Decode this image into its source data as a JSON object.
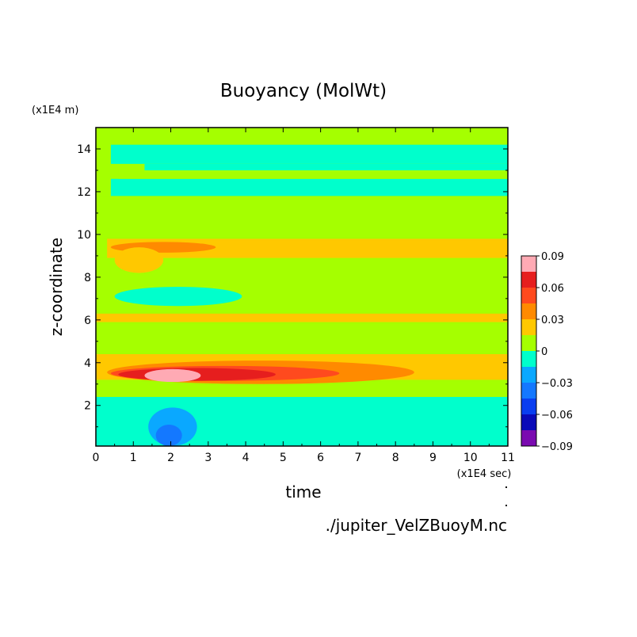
{
  "chart_data": {
    "type": "heatmap",
    "title": "Buoyancy (MolWt)",
    "xlabel": "time",
    "ylabel": "z-coordinate",
    "x_units": "(x1E4 sec)",
    "y_units": "(x1E4 m)",
    "xlim": [
      0,
      11
    ],
    "ylim": [
      0.1,
      15
    ],
    "x_ticks": [
      0,
      1,
      2,
      3,
      4,
      5,
      6,
      7,
      8,
      9,
      10,
      11
    ],
    "y_ticks": [
      2,
      4,
      6,
      8,
      10,
      12,
      14
    ],
    "colorbar": {
      "levels": [
        -0.09,
        -0.075,
        -0.06,
        -0.045,
        -0.03,
        -0.015,
        0,
        0.015,
        0.03,
        0.045,
        0.06,
        0.075,
        0.09
      ],
      "tick_values": [
        0.09,
        0.06,
        0.03,
        0,
        -0.03,
        -0.06,
        -0.09
      ],
      "tick_labels": [
        "0.09",
        "0.06",
        "0.03",
        "0",
        "−0.03",
        "−0.06",
        "−0.09"
      ],
      "colors": [
        "#7a0ab0",
        "#0a0ab8",
        "#0a3ef0",
        "#1478ff",
        "#0aa8ff",
        "#00ffcc",
        "#a5ff00",
        "#ffc800",
        "#ff8a00",
        "#ff4a1e",
        "#e61e1e",
        "#ffaab4"
      ]
    },
    "bands": [
      {
        "z_from": 0.1,
        "z_to": 2.4,
        "t_from": 0,
        "t_to": 11,
        "value": -0.008
      },
      {
        "z_from": 2.4,
        "z_to": 3.2,
        "t_from": 0,
        "t_to": 11,
        "value": 0.007
      },
      {
        "z_from": 3.2,
        "z_to": 4.4,
        "t_from": 0,
        "t_to": 11,
        "value": 0.022
      },
      {
        "z_from": 4.4,
        "z_to": 5.9,
        "t_from": 0,
        "t_to": 11,
        "value": 0.007
      },
      {
        "z_from": 5.9,
        "z_to": 6.3,
        "t_from": 0,
        "t_to": 11,
        "value": 0.022
      },
      {
        "z_from": 6.3,
        "z_to": 8.9,
        "t_from": 0,
        "t_to": 11,
        "value": 0.007
      },
      {
        "z_from": 8.9,
        "z_to": 9.8,
        "t_from": 0.3,
        "t_to": 11,
        "value": 0.022
      },
      {
        "z_from": 9.8,
        "z_to": 11.8,
        "t_from": 0,
        "t_to": 11,
        "value": 0.007
      },
      {
        "z_from": 11.8,
        "z_to": 12.6,
        "t_from": 0.4,
        "t_to": 11,
        "value": -0.008
      },
      {
        "z_from": 12.6,
        "z_to": 13.0,
        "t_from": 0.6,
        "t_to": 11,
        "value": 0.007
      },
      {
        "z_from": 13.0,
        "z_to": 13.3,
        "t_from": 1.3,
        "t_to": 11,
        "value": -0.008
      },
      {
        "z_from": 13.3,
        "z_to": 14.2,
        "t_from": 0.4,
        "t_to": 11,
        "value": -0.008
      },
      {
        "z_from": 14.2,
        "z_to": 15.0,
        "t_from": 0,
        "t_to": 11,
        "value": 0.007
      }
    ],
    "features": [
      {
        "t_from": 0.3,
        "t_to": 8.5,
        "z_center": 3.55,
        "z_half": 0.55,
        "value": 0.038
      },
      {
        "t_from": 0.4,
        "t_to": 6.5,
        "z_center": 3.5,
        "z_half": 0.35,
        "value": 0.052
      },
      {
        "t_from": 0.6,
        "t_to": 4.8,
        "z_center": 3.45,
        "z_half": 0.3,
        "value": 0.068
      },
      {
        "t_from": 1.3,
        "t_to": 2.8,
        "z_center": 3.4,
        "z_half": 0.3,
        "value": 0.082
      },
      {
        "t_from": 1.5,
        "t_to": 2.4,
        "z_center": 3.35,
        "z_half": 0.22,
        "value": 0.092
      },
      {
        "t_from": 0.4,
        "t_to": 3.2,
        "z_center": 9.4,
        "z_half": 0.25,
        "value": 0.038
      },
      {
        "t_from": 0.5,
        "t_to": 1.8,
        "z_center": 8.8,
        "z_half": 0.6,
        "value": 0.022
      },
      {
        "t_from": 0.5,
        "t_to": 3.9,
        "z_center": 7.1,
        "z_half": 0.45,
        "value": -0.008
      },
      {
        "t_from": 1.4,
        "t_to": 2.7,
        "z_center": 1.0,
        "z_half": 0.9,
        "value": -0.022
      },
      {
        "t_from": 1.6,
        "t_to": 2.3,
        "z_center": 0.6,
        "z_half": 0.5,
        "value": -0.038
      }
    ]
  },
  "footer": {
    "source_file": "./jupiter_VelZBuoyM.nc"
  }
}
